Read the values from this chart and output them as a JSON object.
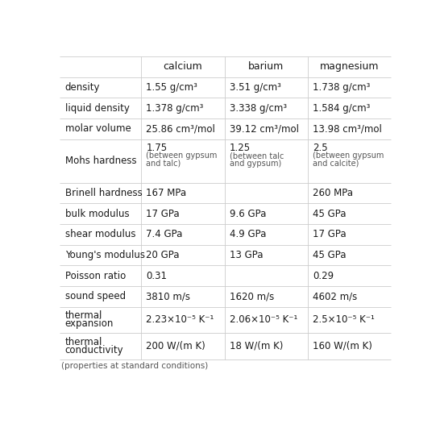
{
  "columns": [
    "",
    "calcium",
    "barium",
    "magnesium"
  ],
  "rows": [
    {
      "property": "density",
      "calcium": "1.55 g/cm³",
      "barium": "3.51 g/cm³",
      "magnesium": "1.738 g/cm³",
      "multiline": false
    },
    {
      "property": "liquid density",
      "calcium": "1.378 g/cm³",
      "barium": "3.338 g/cm³",
      "magnesium": "1.584 g/cm³",
      "multiline": false
    },
    {
      "property": "molar volume",
      "calcium": "25.86 cm³/mol",
      "barium": "39.12 cm³/mol",
      "magnesium": "13.98 cm³/mol",
      "multiline": false
    },
    {
      "property": "Mohs hardness",
      "calcium": [
        "1.75",
        "(between gypsum",
        "and talc)"
      ],
      "barium": [
        "1.25",
        "(between talc",
        "and gypsum)"
      ],
      "magnesium": [
        "2.5",
        "(between gypsum",
        "and calcite)"
      ],
      "multiline": true
    },
    {
      "property": "Brinell hardness",
      "calcium": "167 MPa",
      "barium": "",
      "magnesium": "260 MPa",
      "multiline": false
    },
    {
      "property": "bulk modulus",
      "calcium": "17 GPa",
      "barium": "9.6 GPa",
      "magnesium": "45 GPa",
      "multiline": false
    },
    {
      "property": "shear modulus",
      "calcium": "7.4 GPa",
      "barium": "4.9 GPa",
      "magnesium": "17 GPa",
      "multiline": false
    },
    {
      "property": "Young's modulus",
      "calcium": "20 GPa",
      "barium": "13 GPa",
      "magnesium": "45 GPa",
      "multiline": false
    },
    {
      "property": "Poisson ratio",
      "calcium": "0.31",
      "barium": "",
      "magnesium": "0.29",
      "multiline": false
    },
    {
      "property": "sound speed",
      "calcium": "3810 m/s",
      "barium": "1620 m/s",
      "magnesium": "4602 m/s",
      "multiline": false
    },
    {
      "property": "thermal\nexpansion",
      "calcium": "2.23×10⁻⁵ K⁻¹",
      "barium": "2.06×10⁻⁵ K⁻¹",
      "magnesium": "2.5×10⁻⁵ K⁻¹",
      "multiline": false
    },
    {
      "property": "thermal\nconductivity",
      "calcium": "200 W/(m K)",
      "barium": "18 W/(m K)",
      "magnesium": "160 W/(m K)",
      "multiline": false
    }
  ],
  "footer": "(properties at standard conditions)",
  "bg_color": "#ffffff",
  "line_color": "#cccccc",
  "text_color": "#1a1a1a",
  "sub_text_color": "#555555",
  "font_size": 8.5,
  "sub_font_size": 7.0,
  "header_font_size": 9.0,
  "footer_font_size": 7.5,
  "figsize": [
    5.46,
    5.31
  ],
  "dpi": 100
}
